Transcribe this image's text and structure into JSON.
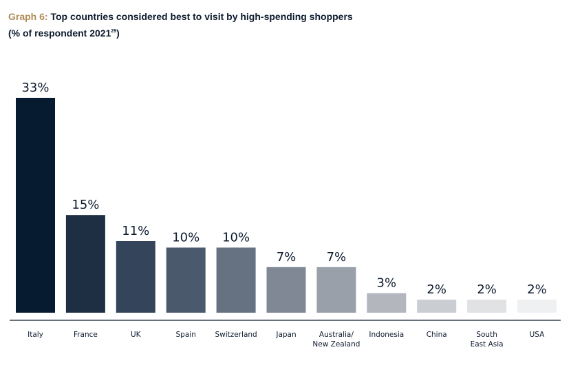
{
  "header": {
    "graph_label": "Graph 6:",
    "title": "Top countries considered best to visit by high-spending shoppers",
    "subtitle": "(% of respondent 2021",
    "footnote_ref": "29",
    "subtitle_end": ")"
  },
  "chart_data": {
    "type": "bar",
    "title": "Top countries considered best to visit by high-spending shoppers",
    "subtitle": "(% of respondent 2021)",
    "categories": [
      "Italy",
      "France",
      "UK",
      "Spain",
      "Switzerland",
      "Japan",
      "Australia/ New Zealand",
      "Indonesia",
      "China",
      "South East Asia",
      "USA"
    ],
    "category_lines": [
      [
        "Italy"
      ],
      [
        "France"
      ],
      [
        "UK"
      ],
      [
        "Spain"
      ],
      [
        "Switzerland"
      ],
      [
        "Japan"
      ],
      [
        "Australia/",
        "New Zealand"
      ],
      [
        "Indonesia"
      ],
      [
        "China"
      ],
      [
        "South",
        "East Asia"
      ],
      [
        "USA"
      ]
    ],
    "values": [
      33,
      15,
      11,
      10,
      10,
      7,
      7,
      3,
      2,
      2,
      2
    ],
    "value_labels": [
      "33%",
      "15%",
      "11%",
      "10%",
      "10%",
      "7%",
      "7%",
      "3%",
      "2%",
      "2%",
      "2%"
    ],
    "colors": [
      "#061a30",
      "#1e2f44",
      "#34445a",
      "#4b596d",
      "#667282",
      "#7f8894",
      "#9aa0a9",
      "#b3b7bd",
      "#cacdd1",
      "#e1e2e4",
      "#eff0f1"
    ],
    "ylim": [
      0,
      33
    ],
    "grid": false,
    "legend": "none",
    "xlabel": "",
    "ylabel": ""
  }
}
